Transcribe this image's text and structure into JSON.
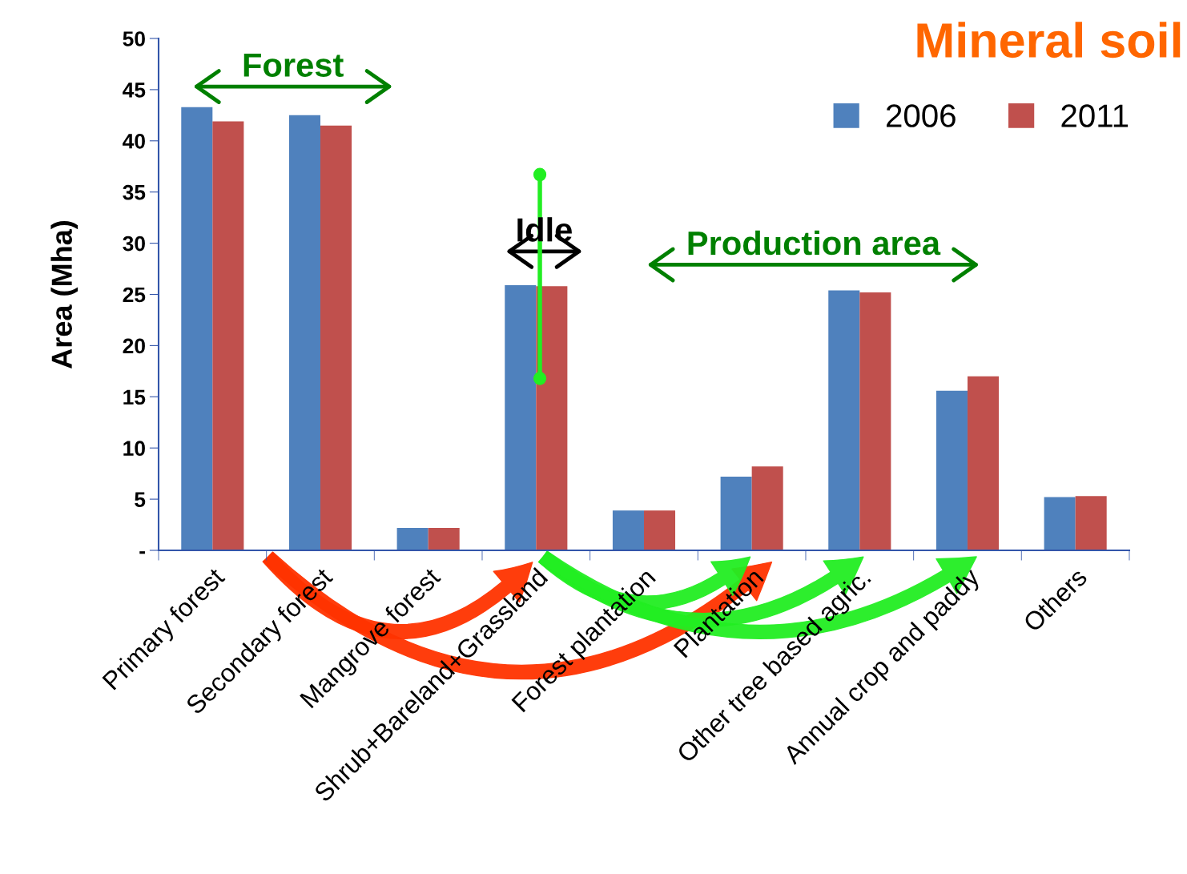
{
  "chart_data": {
    "type": "bar",
    "title": "Mineral soil",
    "ylabel": "Area (Mha)",
    "categories": [
      "Primary forest",
      "Secondary forest",
      "Mangrove forest",
      "Shrub+Bareland+Grassland",
      "Forest plantation",
      "Plantation",
      "Other tree based agric.",
      "Annual crop and paddy",
      "Others"
    ],
    "series": [
      {
        "name": "2006",
        "color": "#4f81bd",
        "values": [
          43.3,
          42.5,
          2.2,
          25.9,
          3.9,
          7.2,
          25.4,
          15.6,
          5.2
        ]
      },
      {
        "name": "2011",
        "color": "#c0504d",
        "values": [
          41.9,
          41.5,
          2.2,
          25.8,
          3.9,
          8.2,
          25.2,
          17.0,
          5.3
        ]
      }
    ],
    "ylim": [
      0,
      50
    ],
    "yticks": [
      {
        "value": 0,
        "label": "-"
      },
      5,
      10,
      15,
      20,
      25,
      30,
      35,
      40,
      45,
      50
    ],
    "annotations": [
      "Forest",
      "Idle",
      "Production area"
    ],
    "legend": "top right",
    "grid": false
  }
}
